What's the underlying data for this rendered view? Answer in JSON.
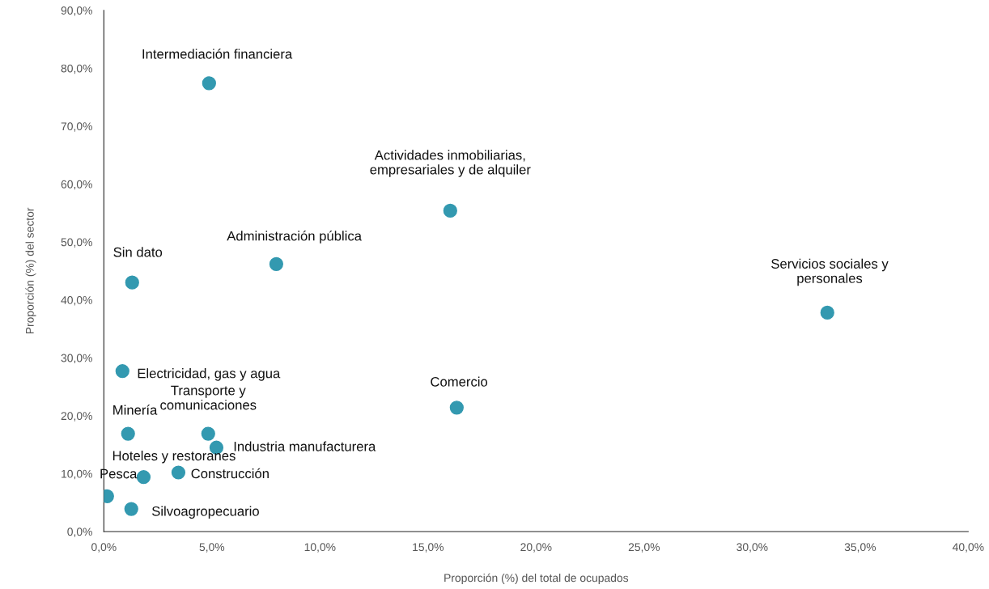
{
  "chart_data": {
    "type": "scatter",
    "xlabel": "Proporción (%) del total de ocupados",
    "ylabel": "Proporción (%) del sector",
    "x": [
      4.87,
      16.03,
      7.98,
      1.31,
      33.48,
      0.86,
      16.33,
      1.12,
      4.83,
      5.21,
      3.45,
      1.84,
      0.15,
      1.27
    ],
    "series": [
      {
        "color": "#3399b0",
        "values": [
          77.4,
          55.4,
          46.2,
          43.0,
          37.8,
          27.7,
          21.4,
          16.9,
          16.9,
          14.5,
          10.2,
          9.4,
          6.1,
          3.9
        ]
      }
    ],
    "annotations": [
      {
        "text": "Intermediación financiera",
        "x": 4.87,
        "y": 77.4
      },
      {
        "text": "Actividades inmobiliarias,\nempresariales y de alquiler",
        "x": 16.03,
        "y": 55.4
      },
      {
        "text": "Administración pública",
        "x": 7.98,
        "y": 46.2
      },
      {
        "text": "Sin dato",
        "x": 1.31,
        "y": 43.0
      },
      {
        "text": "Servicios sociales y\npersonales",
        "x": 33.48,
        "y": 37.8
      },
      {
        "text": "Electricidad, gas y agua",
        "x": 0.86,
        "y": 27.7
      },
      {
        "text": "Comercio",
        "x": 16.33,
        "y": 21.4
      },
      {
        "text": "Minería",
        "x": 1.12,
        "y": 16.9
      },
      {
        "text": "Transporte y\ncomunicaciones",
        "x": 4.83,
        "y": 16.9
      },
      {
        "text": "Industria manufacturera",
        "x": 5.21,
        "y": 14.5
      },
      {
        "text": "Construcción",
        "x": 3.45,
        "y": 10.2
      },
      {
        "text": "Hoteles y restoranes",
        "x": 1.84,
        "y": 9.4
      },
      {
        "text": "Pesca",
        "x": 0.15,
        "y": 6.1
      },
      {
        "text": "Silvoagropecuario",
        "x": 1.27,
        "y": 3.9
      }
    ],
    "xlim": [
      0,
      40
    ],
    "ylim": [
      0,
      90
    ],
    "xticks": [
      {
        "value": 0,
        "label": "0,0%"
      },
      {
        "value": 5,
        "label": "5,0%"
      },
      {
        "value": 10,
        "label": "10,0%"
      },
      {
        "value": 15,
        "label": "15,0%"
      },
      {
        "value": 20,
        "label": "20,0%"
      },
      {
        "value": 25,
        "label": "25,0%"
      },
      {
        "value": 30,
        "label": "30,0%"
      },
      {
        "value": 35,
        "label": "35,0%"
      },
      {
        "value": 40,
        "label": "40,0%"
      }
    ],
    "yticks": [
      {
        "value": 0,
        "label": "0,0%"
      },
      {
        "value": 10,
        "label": "10,0%"
      },
      {
        "value": 20,
        "label": "20,0%"
      },
      {
        "value": 30,
        "label": "30,0%"
      },
      {
        "value": 40,
        "label": "40,0%"
      },
      {
        "value": 50,
        "label": "50,0%"
      },
      {
        "value": 60,
        "label": "60,0%"
      },
      {
        "value": 70,
        "label": "70,0%"
      },
      {
        "value": 80,
        "label": "80,0%"
      },
      {
        "value": 90,
        "label": "90,0%"
      }
    ],
    "grid": false,
    "marker": "circle"
  }
}
